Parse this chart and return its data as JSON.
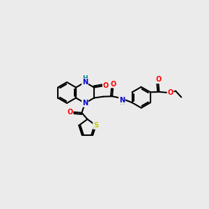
{
  "background_color": "#ebebeb",
  "fig_size": [
    3.0,
    3.0
  ],
  "dpi": 100,
  "atom_colors": {
    "C": "#000000",
    "N": "#0000cc",
    "NH": "#008080",
    "O": "#ff0000",
    "S": "#cccc00",
    "H": "#008080"
  },
  "bond_color": "#000000",
  "bond_width": 1.5,
  "font_size_atom": 7.0
}
